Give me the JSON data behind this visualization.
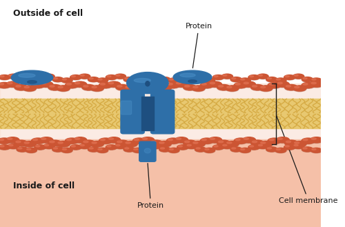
{
  "bg_outside": "#ffffff",
  "bg_inside": "#f5c0a8",
  "head_color": "#cc5533",
  "head_highlight": "#e07050",
  "tail_color": "#e8c870",
  "tail_line_color": "#d4a840",
  "protein_color": "#2e6fa8",
  "protein_dark": "#1e4f80",
  "protein_light": "#4a90c8",
  "label_color": "#1a1a1a",
  "title_outside": "Outside of cell",
  "title_inside": "Inside of cell",
  "label_protein_top": "Protein",
  "label_protein_bot": "Protein",
  "label_membrane": "Cell membrane",
  "figwidth": 5.0,
  "figheight": 3.29,
  "dpi": 100
}
